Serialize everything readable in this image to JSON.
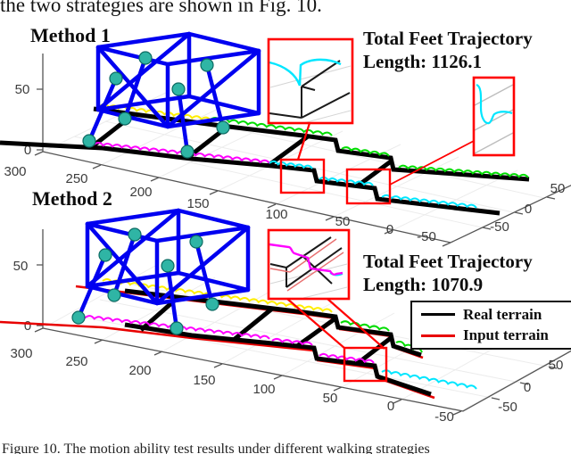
{
  "page": {
    "top_text": "the two strategies are shown in Fig. 10.",
    "caption": "Figure 10.    The motion ability test results under different walking strategies"
  },
  "colors": {
    "robot_blue": "#0000f0",
    "joint_teal": "#2fb5a5",
    "real_terrain": "#000000",
    "input_terrain": "#e80000",
    "traj_magenta": "#ff00ff",
    "traj_cyan": "#00e6ff",
    "traj_yellow": "#ffee00",
    "traj_green": "#00dd00",
    "callout_red": "#ff0000",
    "axis_gray": "#555555",
    "grid_gray": "#ececec"
  },
  "plots": [
    {
      "label": "Method 1",
      "annotation_line1": "Total Feet Trajectory",
      "annotation_line2": "Length: 1126.1",
      "x_ticks": [
        "300",
        "250",
        "200",
        "150",
        "100",
        "50",
        "0",
        "-50"
      ],
      "y_ticks": [
        "50",
        "0",
        "-50"
      ],
      "z_ticks": [
        "50",
        "0"
      ]
    },
    {
      "label": "Method 2",
      "annotation_line1": "Total Feet Trajectory",
      "annotation_line2": "Length: 1070.9",
      "x_ticks": [
        "300",
        "250",
        "200",
        "150",
        "100",
        "50",
        "0",
        "-50"
      ],
      "y_ticks": [
        "50",
        "0",
        "-50"
      ],
      "z_ticks": [
        "50",
        "0"
      ]
    }
  ],
  "legend": {
    "items": [
      {
        "label": "Real terrain",
        "color": "#000000"
      },
      {
        "label": "Input terrain",
        "color": "#e80000"
      }
    ]
  }
}
